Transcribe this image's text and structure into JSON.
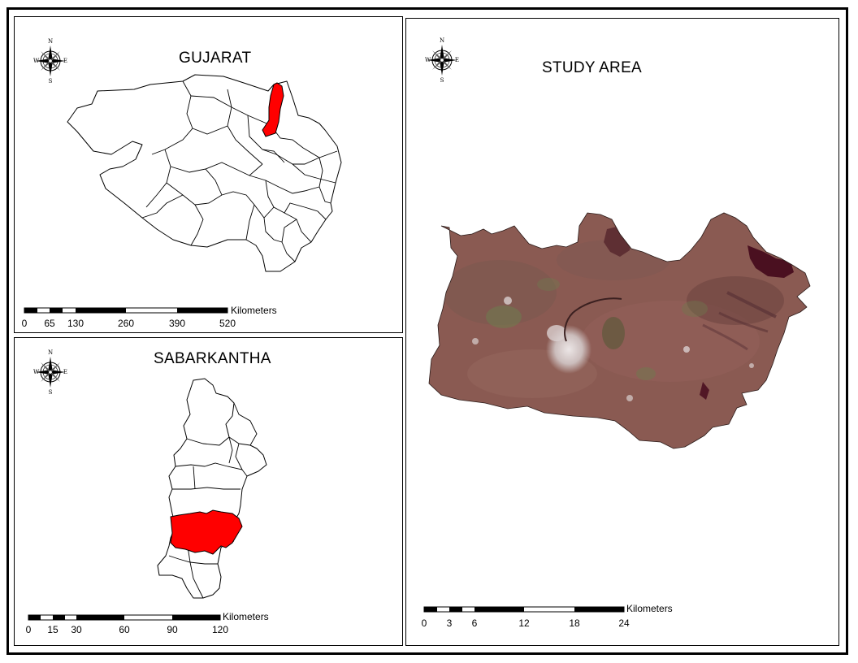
{
  "map_panels": {
    "gujarat": {
      "title": "GUJARAT",
      "compass_labels": {
        "n": "N",
        "s": "S",
        "e": "E",
        "w": "W"
      },
      "scale": {
        "unit": "Kilometers",
        "ticks": [
          "0",
          "65",
          "130",
          "260",
          "390",
          "520"
        ]
      },
      "highlight_color": "#ff0000"
    },
    "sabarkantha": {
      "title": "SABARKANTHA",
      "compass_labels": {
        "n": "N",
        "s": "S",
        "e": "E",
        "w": "W"
      },
      "scale": {
        "unit": "Kilometers",
        "ticks": [
          "0",
          "15",
          "30",
          "60",
          "90",
          "120"
        ]
      },
      "highlight_color": "#ff0000"
    },
    "study_area": {
      "title": "STUDY AREA",
      "compass_labels": {
        "n": "N",
        "s": "S",
        "e": "E",
        "w": "W"
      },
      "scale": {
        "unit": "Kilometers",
        "ticks": [
          "0",
          "3",
          "6",
          "12",
          "18",
          "24"
        ]
      },
      "imagery_colors": {
        "base": "#8a5a52",
        "urban": "#d9cfcf",
        "vegetation": "#6f7a4e",
        "water": "#4a1020"
      }
    }
  }
}
